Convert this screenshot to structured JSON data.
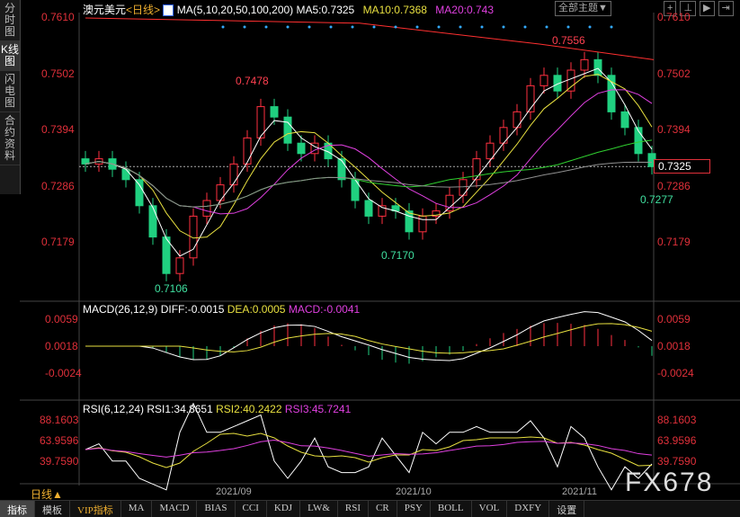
{
  "sidebar": {
    "items": [
      "分时图",
      "K线图",
      "闪电图",
      "合约资料"
    ]
  },
  "header": {
    "symbol": "澳元美元",
    "period": "<日线>",
    "ma_params": "MA(5,10,20,50,100,200)",
    "ma5": "MA5:0.7325",
    "ma10": "MA10:0.7368",
    "ma20": "MA20:0.743",
    "theme_button": "全部主题▼"
  },
  "price_axis": {
    "labels": [
      "0.7610",
      "0.7502",
      "0.7394",
      "0.7286",
      "0.7179"
    ],
    "current": "0.7325"
  },
  "annotations": {
    "high1": "0.7478",
    "high2": "0.7556",
    "low1": "0.7106",
    "low2": "0.7170",
    "low3": "0.7277"
  },
  "macd": {
    "title": "MACD(26,12,9)",
    "diff": "DIFF:-0.0015",
    "dea": "DEA:0.0005",
    "macd": "MACD:-0.0041",
    "labels": [
      "0.0059",
      "0.0018",
      "-0.0024"
    ]
  },
  "rsi": {
    "title": "RSI(6,12,24)",
    "rsi1": "RSI1:34.8651",
    "rsi2": "RSI2:40.2422",
    "rsi3": "RSI3:45.7241",
    "labels": [
      "88.1603",
      "63.9596",
      "39.7590"
    ]
  },
  "time_axis": {
    "period": "日线▲",
    "labels": [
      "2021/09",
      "2021/10",
      "2021/11"
    ]
  },
  "watermark": "FX678",
  "tabs": [
    "指标",
    "模板",
    "VIP指标",
    "MA",
    "MACD",
    "BIAS",
    "CCI",
    "KDJ",
    "LW&",
    "RSI",
    "CR",
    "PSY",
    "BOLL",
    "VOL",
    "DXFY",
    "设置"
  ],
  "colors": {
    "up": "#ff3040",
    "down": "#20d080",
    "ma5": "#ffffff",
    "ma10": "#e8e040",
    "ma20": "#e040e0",
    "ma50": "#30d030",
    "ma100": "#909090",
    "ma200": "#ff3030"
  },
  "chart_data": {
    "type": "candlestick",
    "ylim": [
      0.706,
      0.764
    ],
    "closes": [
      0.733,
      0.734,
      0.732,
      0.73,
      0.725,
      0.719,
      0.712,
      0.715,
      0.723,
      0.726,
      0.729,
      0.733,
      0.738,
      0.744,
      0.742,
      0.737,
      0.735,
      0.737,
      0.734,
      0.73,
      0.726,
      0.723,
      0.725,
      0.724,
      0.72,
      0.723,
      0.724,
      0.727,
      0.73,
      0.734,
      0.737,
      0.74,
      0.743,
      0.748,
      0.75,
      0.747,
      0.751,
      0.753,
      0.75,
      0.743,
      0.74,
      0.735,
      0.7325
    ]
  }
}
